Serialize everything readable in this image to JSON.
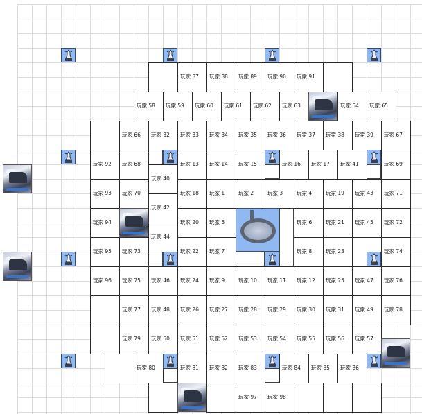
{
  "map": {
    "colors": {
      "beacon": "#8fb9f0",
      "border": "#2a2a2a",
      "grid": "#dcdcdc"
    },
    "icons": {
      "beacon": "lighthouse-tower-icon",
      "stronghold": "tank-fortress-icon",
      "center": "arena-castle-icon"
    },
    "cells": [
      "",
      "玩家 87",
      "玩家 88",
      "玩家 89",
      "玩家 90",
      "玩家 91",
      "",
      "玩家 58",
      "玩家 59",
      "玩家 60",
      "玩家 61",
      "玩家 62",
      "玩家 63",
      "玩家 64",
      "玩家 65",
      "",
      "玩家 66",
      "玩家 32",
      "玩家 33",
      "玩家 34",
      "玩家 35",
      "玩家 36",
      "玩家 37",
      "玩家 38",
      "玩家 39",
      "玩家 67",
      "玩家 92",
      "玩家 68",
      "玩家 13",
      "玩家 14",
      "玩家 15",
      "玩家 16",
      "玩家 17",
      "玩家 41",
      "玩家 69",
      "玩家 40",
      "玩家 42",
      "玩家 44",
      "玩家 93",
      "玩家 70",
      "玩家 18",
      "玩家 1",
      "玩家 2",
      "玩家 3",
      "玩家 4",
      "玩家 19",
      "玩家 43",
      "玩家 71",
      "玩家 94",
      "玩家 20",
      "玩家 5",
      "玩家 6",
      "玩家 21",
      "玩家 45",
      "玩家 72",
      "玩家 95",
      "玩家 73",
      "玩家 22",
      "玩家 7",
      "玩家 8",
      "玩家 23",
      "",
      "玩家 74",
      "玩家 96",
      "玩家 75",
      "玩家 46",
      "玩家 24",
      "玩家 9",
      "玩家 10",
      "玩家 11",
      "玩家 12",
      "玩家 25",
      "玩家 47",
      "玩家 76",
      "",
      "玩家 77",
      "玩家 48",
      "玩家 26",
      "玩家 27",
      "玩家 28",
      "玩家 29",
      "玩家 30",
      "玩家 31",
      "玩家 49",
      "玩家 78",
      "",
      "玩家 79",
      "玩家 50",
      "玩家 51",
      "玩家 52",
      "玩家 53",
      "玩家 54",
      "玩家 55",
      "玩家 56",
      "玩家 57",
      "",
      "玩家 80",
      "玩家 81",
      "玩家 82",
      "玩家 83",
      "玩家 84",
      "玩家 85",
      "玩家 86",
      "",
      "",
      "玩家 97",
      "玩家 98",
      "",
      "",
      ""
    ]
  }
}
